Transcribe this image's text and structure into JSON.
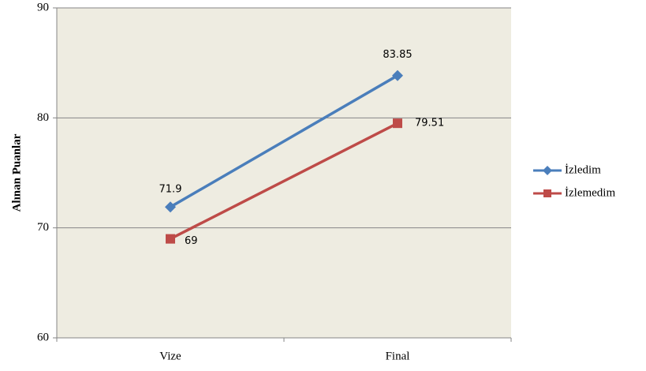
{
  "chart_data": {
    "type": "line",
    "y_label": "Alınan Puanlar",
    "categories": [
      "Vize",
      "Final"
    ],
    "series": [
      {
        "name": "İzledim",
        "color": "#4a7ebb",
        "marker": "diamond",
        "values": [
          71.9,
          83.85
        ]
      },
      {
        "name": "İzlemedim",
        "color": "#be4b48",
        "marker": "square",
        "values": [
          69,
          79.51
        ]
      }
    ],
    "ylim": [
      60,
      90
    ],
    "yticks": [
      60,
      70,
      80,
      90
    ],
    "grid": true,
    "legend": "right"
  }
}
